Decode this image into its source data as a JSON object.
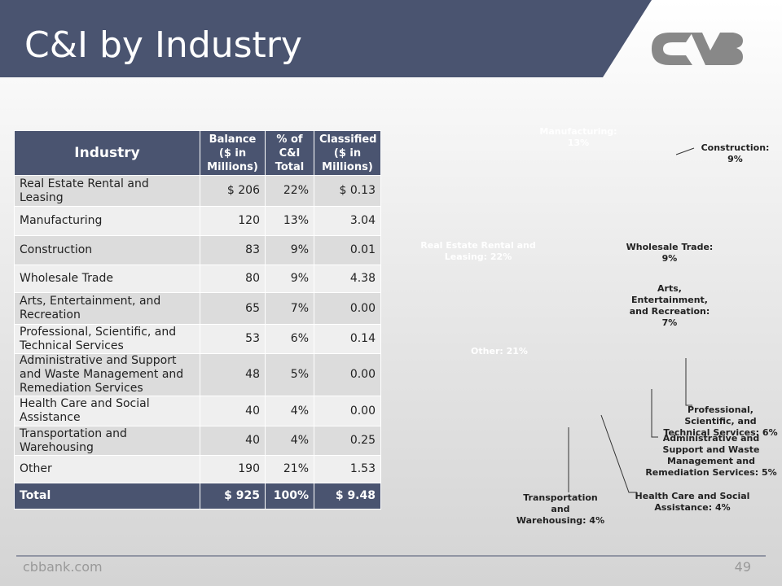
{
  "header": {
    "title": "C&I by Industry"
  },
  "table": {
    "columns": [
      "Industry",
      "Balance ($ in Millions)",
      "% of C&I Total",
      "Classified ($ in Millions)"
    ],
    "rows": [
      [
        "Real Estate Rental and Leasing",
        "$ 206",
        "22%",
        "$ 0.13"
      ],
      [
        "Manufacturing",
        "120",
        "13%",
        "3.04"
      ],
      [
        "Construction",
        "83",
        "9%",
        "0.01"
      ],
      [
        "Wholesale Trade",
        "80",
        "9%",
        "4.38"
      ],
      [
        "Arts, Entertainment, and Recreation",
        "65",
        "7%",
        "0.00"
      ],
      [
        "Professional, Scientific, and Technical Services",
        "53",
        "6%",
        "0.14"
      ],
      [
        "Administrative and Support and Waste Management and Remediation Services",
        "48",
        "5%",
        "0.00"
      ],
      [
        "Health Care and Social Assistance",
        "40",
        "4%",
        "0.00"
      ],
      [
        "Transportation and Warehousing",
        "40",
        "4%",
        "0.25"
      ],
      [
        "Other",
        "190",
        "21%",
        "1.53"
      ]
    ],
    "total": [
      "Total",
      "$ 925",
      "100%",
      "$ 9.48"
    ]
  },
  "chart_data": {
    "type": "pie",
    "categories": [
      "Real Estate Rental and Leasing",
      "Manufacturing",
      "Construction",
      "Wholesale Trade",
      "Arts, Entertainment, and Recreation",
      "Professional, Scientific, and Technical Services",
      "Administrative and Support and Waste Management and Remediation Services",
      "Health Care and Social Assistance",
      "Transportation and Warehousing",
      "Other"
    ],
    "values": [
      22,
      13,
      9,
      9,
      7,
      6,
      5,
      4,
      4,
      21
    ],
    "value_labels": [
      "Real Estate Rental and Leasing: 22%",
      "Manufacturing: 13%",
      "Construction: 9%",
      "Wholesale Trade: 9%",
      "Arts, Entertainment, and Recreation: 7%",
      "Professional, Scientific, and Technical Services: 6%",
      "Administrative and Support and Waste Management and Remediation Services: 5%",
      "Health Care and Social Assistance: 4%",
      "Transportation and Warehousing: 4%",
      "Other: 21%"
    ],
    "colors": [
      "#4a5470",
      "#8a95b2",
      "#8b8168",
      "#d9d59c",
      "#00a6e4",
      "#c00000",
      "#8b8d3d",
      "#6b5f4d",
      "#2f3545",
      "#63678a"
    ]
  },
  "footer": {
    "site": "cbbank.com",
    "page": "49"
  }
}
